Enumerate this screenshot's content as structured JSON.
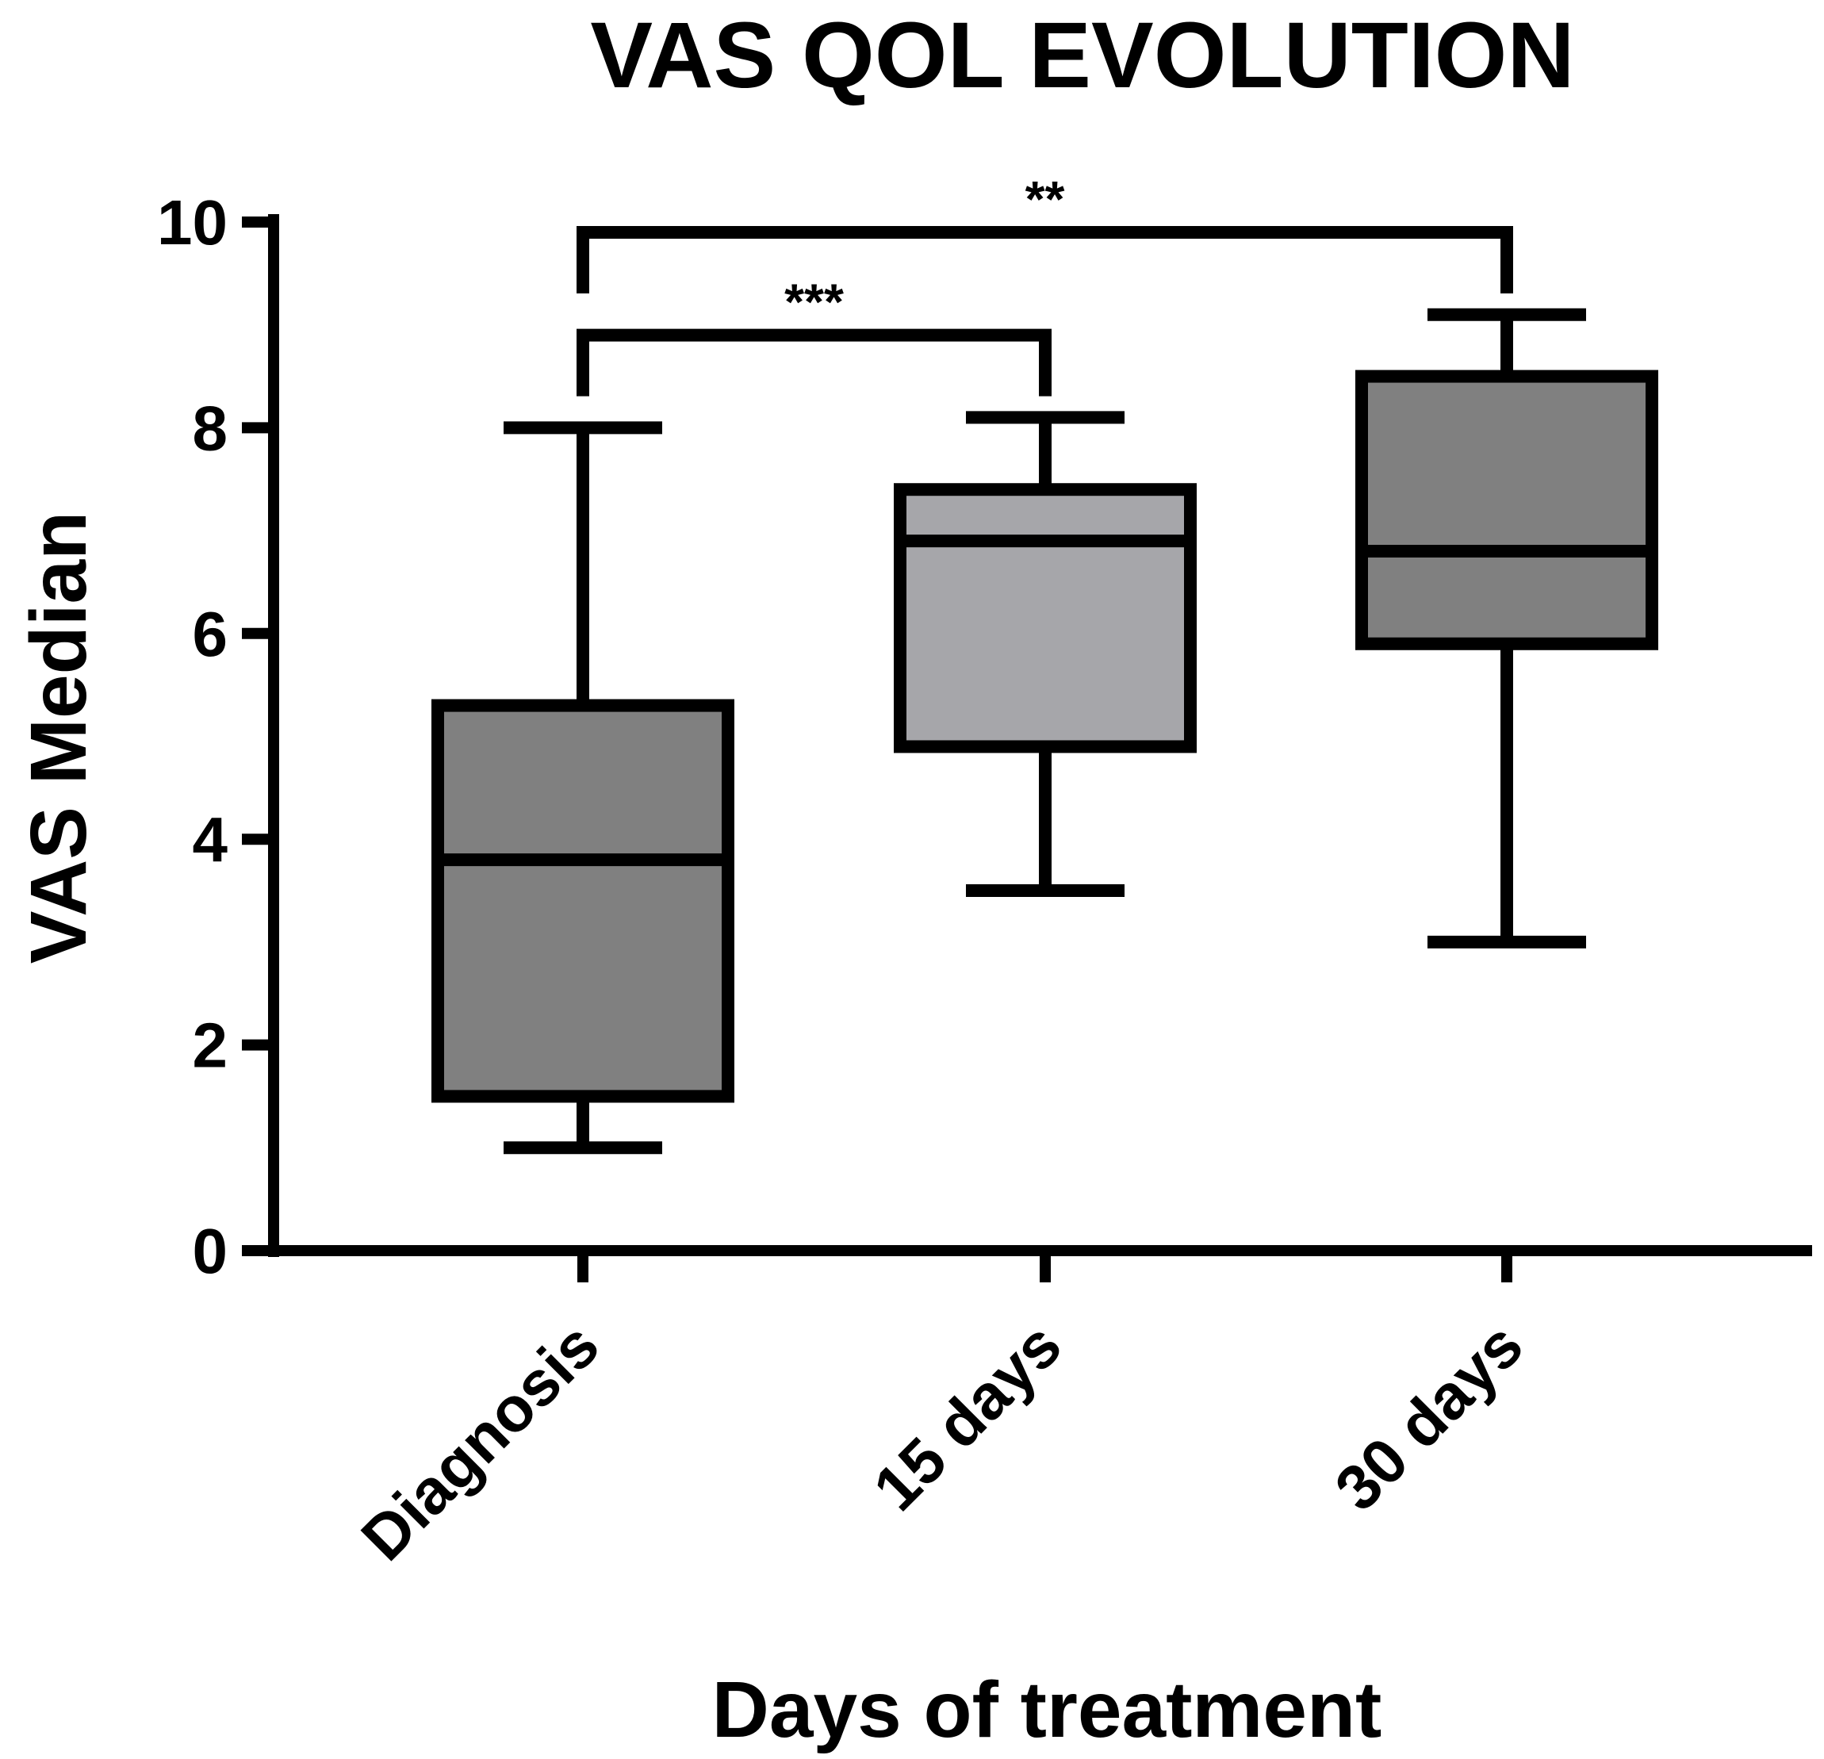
{
  "chart_data": {
    "type": "box",
    "title": "VAS QOL EVOLUTION",
    "xlabel": "Days of treatment",
    "ylabel": "VAS Median",
    "ylim": [
      0,
      10
    ],
    "yticks": [
      0,
      2,
      4,
      6,
      8,
      10
    ],
    "categories": [
      "Diagnosis",
      "15 days",
      "30 days"
    ],
    "boxes": [
      {
        "category": "Diagnosis",
        "min": 1.0,
        "q1": 1.5,
        "median": 3.8,
        "q3": 5.3,
        "max": 8.0,
        "fill": "#808080"
      },
      {
        "category": "15 days",
        "min": 3.5,
        "q1": 4.9,
        "median": 6.9,
        "q3": 7.4,
        "max": 8.1,
        "fill": "#a6a6aa"
      },
      {
        "category": "30 days",
        "min": 3.0,
        "q1": 5.9,
        "median": 6.8,
        "q3": 8.5,
        "max": 9.1,
        "fill": "#808080"
      }
    ],
    "significance": [
      {
        "from": "Diagnosis",
        "to": "15 days",
        "label": "***",
        "y": 8.9
      },
      {
        "from": "Diagnosis",
        "to": "30 days",
        "label": "**",
        "y": 9.9
      }
    ]
  }
}
